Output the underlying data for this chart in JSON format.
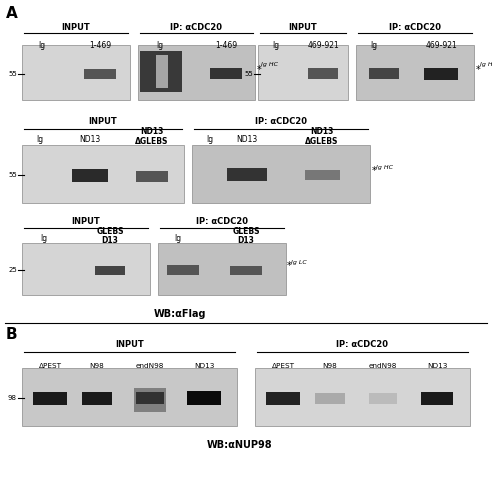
{
  "fig_width": 4.92,
  "fig_height": 5.0,
  "dpi": 100,
  "bg_color": "#ffffff",
  "panel_A_label": "A",
  "panel_B_label": "B",
  "wb_A": "WB:αFlag",
  "wb_B": "WB:αNUP98"
}
